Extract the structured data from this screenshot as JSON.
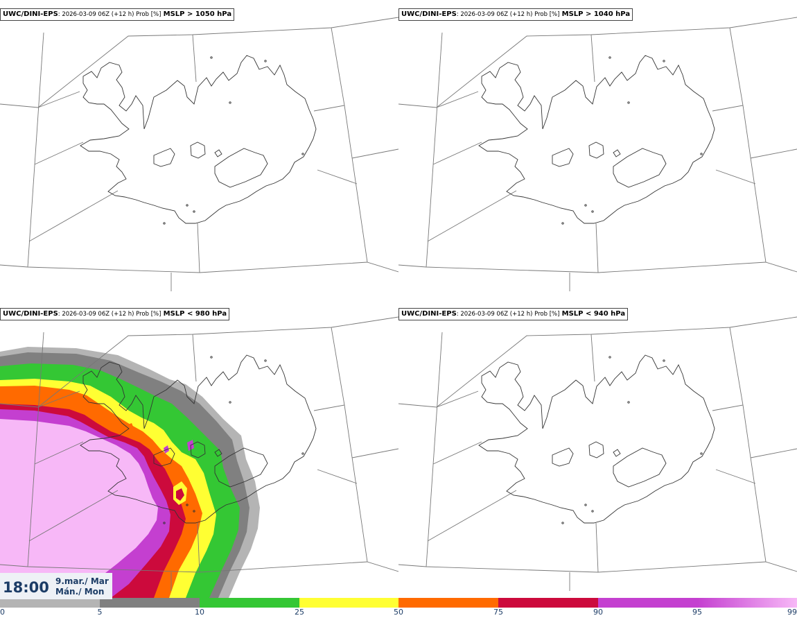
{
  "panels": [
    {
      "model": "UWC/DINI-EPS",
      "meta": ": 2026-03-09 06Z (+12 h) Prob [%]",
      "param": "MSLP > 1050 hPa",
      "shaded": false
    },
    {
      "model": "UWC/DINI-EPS",
      "meta": ": 2026-03-09 06Z (+12 h) Prob [%]",
      "param": "MSLP > 1040 hPa",
      "shaded": false
    },
    {
      "model": "UWC/DINI-EPS",
      "meta": ": 2026-03-09 06Z (+12 h) Prob [%]",
      "param": "MSLP < 980 hPa",
      "shaded": true
    },
    {
      "model": "UWC/DINI-EPS",
      "meta": ": 2026-03-09 06Z (+12 h) Prob [%]",
      "param": "MSLP < 940 hPa",
      "shaded": false
    }
  ],
  "time": {
    "clock": "18:00",
    "date_is": "9.mar./ Mar",
    "day_is": "Mán./ Mon"
  },
  "colorbar": {
    "ticks": [
      "0",
      "5",
      "10",
      "25",
      "50",
      "75",
      "90",
      "95",
      "99"
    ],
    "colors": [
      "#ffffff",
      "#b4b4b4",
      "#808080",
      "#34c734",
      "#ffff33",
      "#ff6a00",
      "#cc0a3c",
      "#c43fd0",
      "#f7b8f7"
    ]
  }
}
